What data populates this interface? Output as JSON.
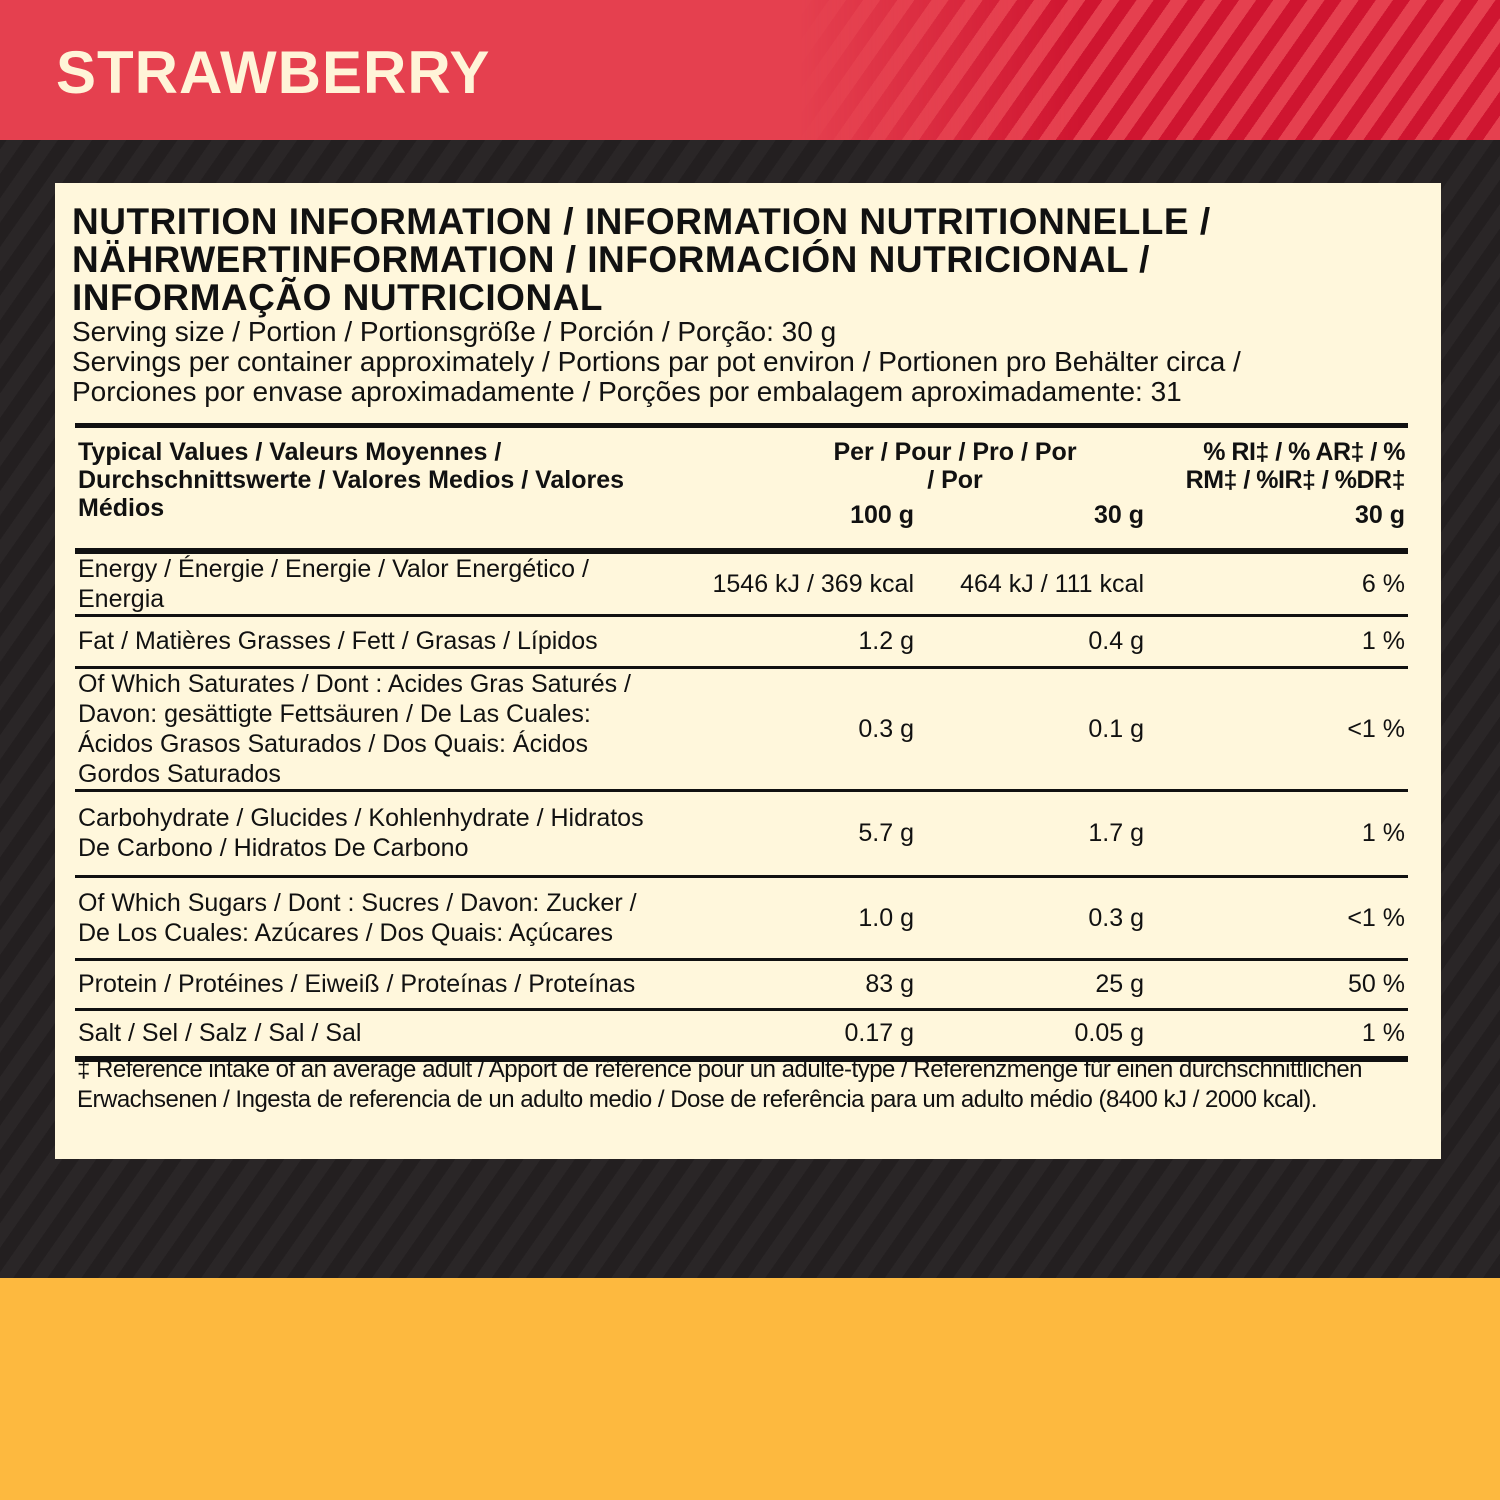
{
  "header": {
    "title": "STRAWBERRY"
  },
  "panel": {
    "title_lines": [
      "NUTRITION INFORMATION / INFORMATION NUTRITIONNELLE /",
      "NÄHRWERTINFORMATION / INFORMACIÓN NUTRICIONAL /",
      "INFORMAÇÃO NUTRICIONAL"
    ],
    "serving_lines": [
      "Serving size / Portion / Portionsgröße / Porción / Porção: 30 g",
      "Servings per container approximately / Portions par pot environ / Portionen pro Behälter circa /",
      "Porciones por envase aproximadamente / Porções por embalagem aproximadamente: 31"
    ],
    "table": {
      "header": {
        "label": "Typical Values / Valeurs Moyennes / Durchschnittswerte / Valores Medios / Valores Médios",
        "per": "Per / Pour / Pro / Por / Por",
        "ri": "% RI‡ / % AR‡ / % RM‡ / %IR‡ / %DR‡",
        "units": [
          "100 g",
          "30 g",
          "30 g"
        ]
      },
      "rows": [
        [
          "Energy / Énergie / Energie / Valor Energético / Energia",
          "1546 kJ / 369 kcal",
          "464 kJ / 111 kcal",
          "6 %"
        ],
        [
          "Fat / Matières Grasses / Fett / Grasas / Lípidos",
          "1.2 g",
          "0.4 g",
          "1 %"
        ],
        [
          "Of Which Saturates / Dont : Acides Gras Saturés / Davon: gesättigte Fettsäuren / De Las Cuales: Ácidos Grasos Saturados / Dos Quais: Ácidos Gordos Saturados",
          "0.3 g",
          "0.1 g",
          "<1 %"
        ],
        [
          "Carbohydrate / Glucides / Kohlenhydrate / Hidratos De Carbono / Hidratos De Carbono",
          "5.7 g",
          "1.7 g",
          "1 %"
        ],
        [
          "Of Which Sugars / Dont : Sucres / Davon: Zucker / De Los Cuales: Azúcares / Dos Quais: Açúcares",
          "1.0 g",
          "0.3 g",
          "<1 %"
        ],
        [
          "Protein / Protéines / Eiweiß / Proteínas / Proteínas",
          "83 g",
          "25 g",
          "50 %"
        ],
        [
          "Salt / Sel / Salz / Sal / Sal",
          "0.17 g",
          "0.05 g",
          "1 %"
        ]
      ]
    },
    "footnote": "‡ Reference intake of an average adult / Apport de référence pour un adulte-type / Referenzmenge für einen durchschnittlichen Erwachsenen / Ingesta de referencia de un adulto medio / Dose de referência para um adulto médio (8400 kJ / 2000 kcal)."
  }
}
